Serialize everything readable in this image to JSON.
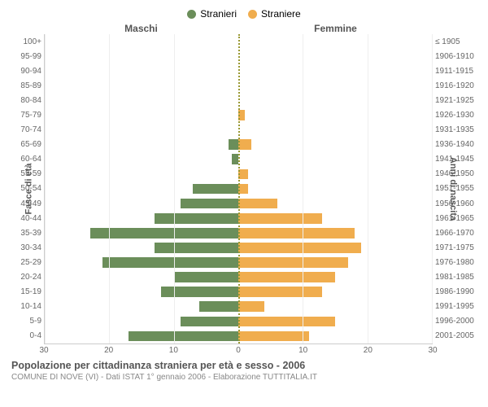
{
  "legend": {
    "male": {
      "label": "Stranieri",
      "color": "#6b8e5a"
    },
    "female": {
      "label": "Straniere",
      "color": "#f0ad4e"
    }
  },
  "headers": {
    "male": "Maschi",
    "female": "Femmine"
  },
  "axis_titles": {
    "left": "Fasce di età",
    "right": "Anni di nascita"
  },
  "x_axis": {
    "max": 30,
    "ticks": [
      30,
      20,
      10,
      0,
      10,
      20,
      30
    ]
  },
  "chart": {
    "type": "population-pyramid",
    "grid_color": "#eeeeee",
    "center_line_color": "#999933",
    "background_color": "#ffffff",
    "label_fontsize": 10,
    "rows": [
      {
        "age": "100+",
        "birth": "≤ 1905",
        "m": 0,
        "f": 0
      },
      {
        "age": "95-99",
        "birth": "1906-1910",
        "m": 0,
        "f": 0
      },
      {
        "age": "90-94",
        "birth": "1911-1915",
        "m": 0,
        "f": 0
      },
      {
        "age": "85-89",
        "birth": "1916-1920",
        "m": 0,
        "f": 0
      },
      {
        "age": "80-84",
        "birth": "1921-1925",
        "m": 0,
        "f": 0
      },
      {
        "age": "75-79",
        "birth": "1926-1930",
        "m": 0,
        "f": 1
      },
      {
        "age": "70-74",
        "birth": "1931-1935",
        "m": 0,
        "f": 0
      },
      {
        "age": "65-69",
        "birth": "1936-1940",
        "m": 1.5,
        "f": 2
      },
      {
        "age": "60-64",
        "birth": "1941-1945",
        "m": 1,
        "f": 0
      },
      {
        "age": "55-59",
        "birth": "1946-1950",
        "m": 0,
        "f": 1.5
      },
      {
        "age": "50-54",
        "birth": "1951-1955",
        "m": 7,
        "f": 1.5
      },
      {
        "age": "45-49",
        "birth": "1956-1960",
        "m": 9,
        "f": 6
      },
      {
        "age": "40-44",
        "birth": "1961-1965",
        "m": 13,
        "f": 13
      },
      {
        "age": "35-39",
        "birth": "1966-1970",
        "m": 23,
        "f": 18
      },
      {
        "age": "30-34",
        "birth": "1971-1975",
        "m": 13,
        "f": 19
      },
      {
        "age": "25-29",
        "birth": "1976-1980",
        "m": 21,
        "f": 17
      },
      {
        "age": "20-24",
        "birth": "1981-1985",
        "m": 10,
        "f": 15
      },
      {
        "age": "15-19",
        "birth": "1986-1990",
        "m": 12,
        "f": 13
      },
      {
        "age": "10-14",
        "birth": "1991-1995",
        "m": 6,
        "f": 4
      },
      {
        "age": "5-9",
        "birth": "1996-2000",
        "m": 9,
        "f": 15
      },
      {
        "age": "0-4",
        "birth": "2001-2005",
        "m": 17,
        "f": 11
      }
    ]
  },
  "caption": {
    "title": "Popolazione per cittadinanza straniera per età e sesso - 2006",
    "subtitle": "COMUNE DI NOVE (VI) - Dati ISTAT 1° gennaio 2006 - Elaborazione TUTTITALIA.IT"
  }
}
